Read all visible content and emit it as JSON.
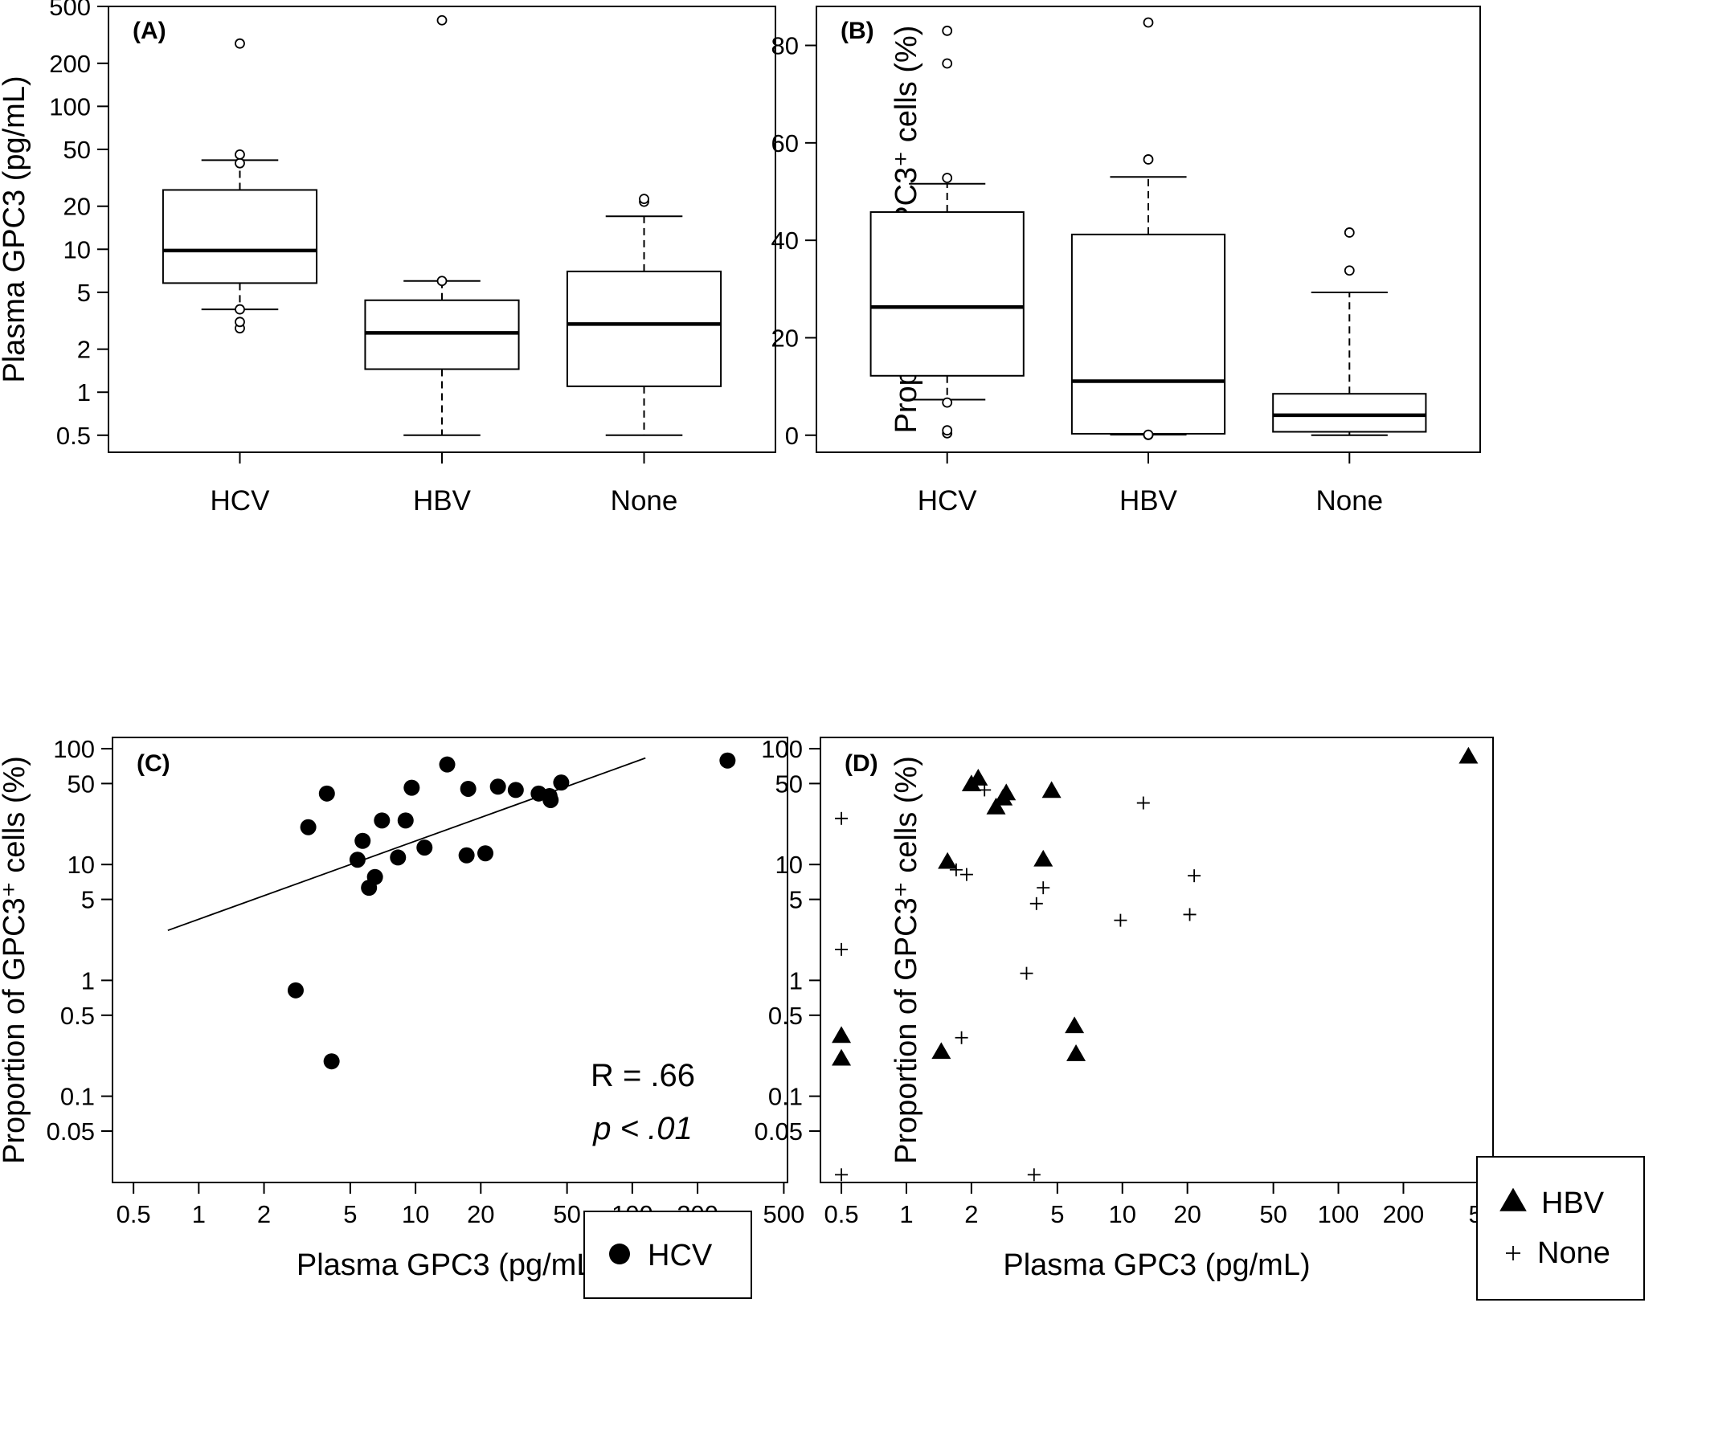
{
  "chart_data": [
    {
      "panel": "(A)",
      "type": "box",
      "ylabel": "Plasma GPC3 (pg/mL)",
      "yscale": "log",
      "ylim": [
        0.38,
        500
      ],
      "yticks": [
        "0.5",
        "1",
        "2",
        "5",
        "10",
        "20",
        "50",
        "100",
        "200",
        "500"
      ],
      "categories": [
        "HCV",
        "HBV",
        "None"
      ],
      "boxes": [
        {
          "q1": 5.8,
          "median": 9.8,
          "q3": 26,
          "whisker_low": 3.8,
          "whisker_high": 42,
          "outliers": [
            2.8,
            3.1,
            3.8,
            40,
            46,
            275
          ]
        },
        {
          "q1": 1.45,
          "median": 2.6,
          "q3": 4.4,
          "whisker_low": 0.5,
          "whisker_high": 6.0,
          "outliers": [
            6.0,
            400
          ]
        },
        {
          "q1": 1.1,
          "median": 3.0,
          "q3": 7.0,
          "whisker_low": 0.5,
          "whisker_high": 17,
          "outliers": [
            21.5,
            22.5
          ]
        }
      ]
    },
    {
      "panel": "(B)",
      "type": "box",
      "ylabel": "Proportion of GPC3⁺ cells (%)",
      "yscale": "linear",
      "ylim": [
        -3.5,
        88
      ],
      "yticks": [
        "0",
        "20",
        "40",
        "60",
        "80"
      ],
      "categories": [
        "HCV",
        "HBV",
        "None"
      ],
      "boxes": [
        {
          "q1": 12.2,
          "median": 26.3,
          "q3": 45.8,
          "whisker_low": 7.3,
          "whisker_high": 51.6,
          "outliers": [
            0.4,
            1.0,
            6.7,
            52.8,
            76.3,
            83.0
          ]
        },
        {
          "q1": 0.3,
          "median": 11.1,
          "q3": 41.2,
          "whisker_low": 0.1,
          "whisker_high": 53.0,
          "outliers": [
            0.05,
            0.1,
            56.6,
            84.7
          ]
        },
        {
          "q1": 0.7,
          "median": 4.1,
          "q3": 8.5,
          "whisker_low": 0.0,
          "whisker_high": 29.3,
          "outliers": [
            33.8,
            41.6
          ]
        }
      ]
    },
    {
      "panel": "(C)",
      "type": "scatter",
      "xlabel": "Plasma GPC3 (pg/mL)",
      "ylabel": "Proportion of GPC3⁺ cells (%)",
      "xscale": "log",
      "yscale": "log",
      "xlim": [
        0.4,
        520
      ],
      "ylim": [
        0.018,
        125
      ],
      "xticks": [
        "0.5",
        "1",
        "2",
        "5",
        "10",
        "20",
        "50",
        "100",
        "200",
        "500"
      ],
      "yticks": [
        "0.05",
        "0.1",
        "0.5",
        "1",
        "5",
        "10",
        "50",
        "100"
      ],
      "series": [
        {
          "name": "HCV",
          "marker": "filled-circle",
          "points": [
            [
              2.8,
              0.82
            ],
            [
              3.2,
              21
            ],
            [
              3.9,
              41
            ],
            [
              4.1,
              0.2
            ],
            [
              5.4,
              11
            ],
            [
              5.7,
              16
            ],
            [
              6.1,
              6.3
            ],
            [
              6.5,
              7.8
            ],
            [
              7.0,
              24
            ],
            [
              8.3,
              11.5
            ],
            [
              9.0,
              24
            ],
            [
              9.6,
              46
            ],
            [
              11.0,
              14
            ],
            [
              14.0,
              73
            ],
            [
              17.2,
              12
            ],
            [
              17.5,
              45
            ],
            [
              21.0,
              12.5
            ],
            [
              24.0,
              47
            ],
            [
              29.0,
              44
            ],
            [
              37.0,
              41
            ],
            [
              41.5,
              39
            ],
            [
              42.0,
              36
            ],
            [
              47.0,
              51
            ],
            [
              275.0,
              79
            ]
          ]
        }
      ],
      "fit_line": [
        [
          0.72,
          2.7
        ],
        [
          115.0,
          83.0
        ]
      ],
      "annotation": {
        "r": "R = .66",
        "p": "p < .01"
      }
    },
    {
      "panel": "(D)",
      "type": "scatter",
      "xlabel": "Plasma GPC3 (pg/mL)",
      "ylabel": "Proportion of GPC3⁺ cells (%)",
      "xscale": "log",
      "yscale": "log",
      "xlim": [
        0.4,
        520
      ],
      "ylim": [
        0.018,
        125
      ],
      "xticks": [
        "0.5",
        "1",
        "2",
        "5",
        "10",
        "20",
        "50",
        "100",
        "200",
        "500"
      ],
      "yticks": [
        "0.05",
        "0.1",
        "0.5",
        "1",
        "5",
        "10",
        "50",
        "100"
      ],
      "series": [
        {
          "name": "HBV",
          "marker": "filled-triangle",
          "points": [
            [
              0.5,
              0.33
            ],
            [
              0.5,
              0.21
            ],
            [
              1.45,
              0.24
            ],
            [
              1.55,
              10.5
            ],
            [
              2.0,
              49
            ],
            [
              2.15,
              55
            ],
            [
              2.6,
              31
            ],
            [
              2.8,
              37
            ],
            [
              2.9,
              41
            ],
            [
              4.3,
              11
            ],
            [
              4.7,
              43
            ],
            [
              6.0,
              0.4
            ],
            [
              6.1,
              0.23
            ],
            [
              400.0,
              85
            ]
          ]
        },
        {
          "name": "None",
          "marker": "plus",
          "points": [
            [
              0.5,
              25
            ],
            [
              0.5,
              1.85
            ],
            [
              0.5,
              0.021
            ],
            [
              1.7,
              9.0
            ],
            [
              1.8,
              0.32
            ],
            [
              1.9,
              8.2
            ],
            [
              2.3,
              44
            ],
            [
              3.6,
              1.15
            ],
            [
              3.9,
              0.021
            ],
            [
              4.0,
              4.6
            ],
            [
              4.3,
              6.3
            ],
            [
              9.8,
              3.3
            ],
            [
              12.5,
              34
            ],
            [
              20.5,
              3.7
            ],
            [
              21.5,
              8.0
            ]
          ]
        }
      ]
    }
  ]
}
